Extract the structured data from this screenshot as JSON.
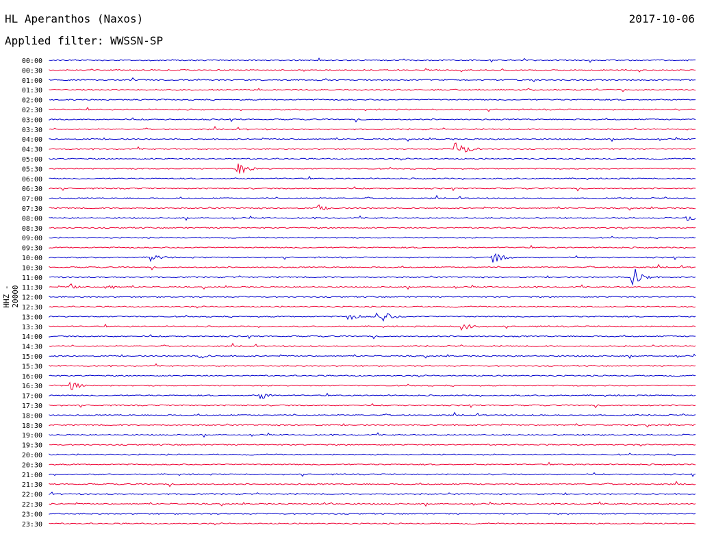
{
  "header": {
    "station": "HL Aperanthos (Naxos)",
    "date": "2017-10-06",
    "filter": "Applied filter: WWSSN-SP"
  },
  "colors": {
    "odd": "#0000cc",
    "even": "#ee0033"
  },
  "chart_data": {
    "type": "line",
    "title": "HL Aperanthos (Naxos)",
    "subtitle": "Applied filter: WWSSN-SP",
    "xlabel": "",
    "ylabel": "HHZ - 20000",
    "rows": [
      "00:00",
      "00:30",
      "01:00",
      "01:30",
      "02:00",
      "02:30",
      "03:00",
      "03:30",
      "04:00",
      "04:30",
      "05:00",
      "05:30",
      "06:00",
      "06:30",
      "07:00",
      "07:30",
      "08:00",
      "08:30",
      "09:00",
      "09:30",
      "10:00",
      "10:30",
      "11:00",
      "11:30",
      "12:00",
      "12:30",
      "13:00",
      "13:30",
      "14:00",
      "14:30",
      "15:00",
      "15:30",
      "16:00",
      "16:30",
      "17:00",
      "17:30",
      "18:00",
      "18:30",
      "19:00",
      "19:30",
      "20:00",
      "20:30",
      "21:00",
      "21:30",
      "22:00",
      "22:30",
      "23:00",
      "23:30"
    ],
    "events": [
      {
        "row": "04:30",
        "minute": 18.9,
        "amplitude": 14
      },
      {
        "row": "05:30",
        "minute": 8.8,
        "amplitude": 9
      },
      {
        "row": "07:30",
        "minute": 12.5,
        "amplitude": 5
      },
      {
        "row": "08:00",
        "minute": 29.6,
        "amplitude": 5
      },
      {
        "row": "10:00",
        "minute": 20.6,
        "amplitude": 9
      },
      {
        "row": "10:00",
        "minute": 4.8,
        "amplitude": 6
      },
      {
        "row": "11:00",
        "minute": 27.1,
        "amplitude": 16
      },
      {
        "row": "11:30",
        "minute": 1.0,
        "amplitude": 5
      },
      {
        "row": "11:30",
        "minute": 2.7,
        "amplitude": 5
      },
      {
        "row": "13:00",
        "minute": 15.3,
        "amplitude": 13
      },
      {
        "row": "13:00",
        "minute": 13.9,
        "amplitude": 6
      },
      {
        "row": "13:30",
        "minute": 19.2,
        "amplitude": 7
      },
      {
        "row": "15:00",
        "minute": 7.0,
        "amplitude": 4
      },
      {
        "row": "16:30",
        "minute": 1.0,
        "amplitude": 7
      },
      {
        "row": "17:00",
        "minute": 9.8,
        "amplitude": 6
      },
      {
        "row": "22:30",
        "minute": 12.9,
        "amplitude": 3
      }
    ]
  }
}
